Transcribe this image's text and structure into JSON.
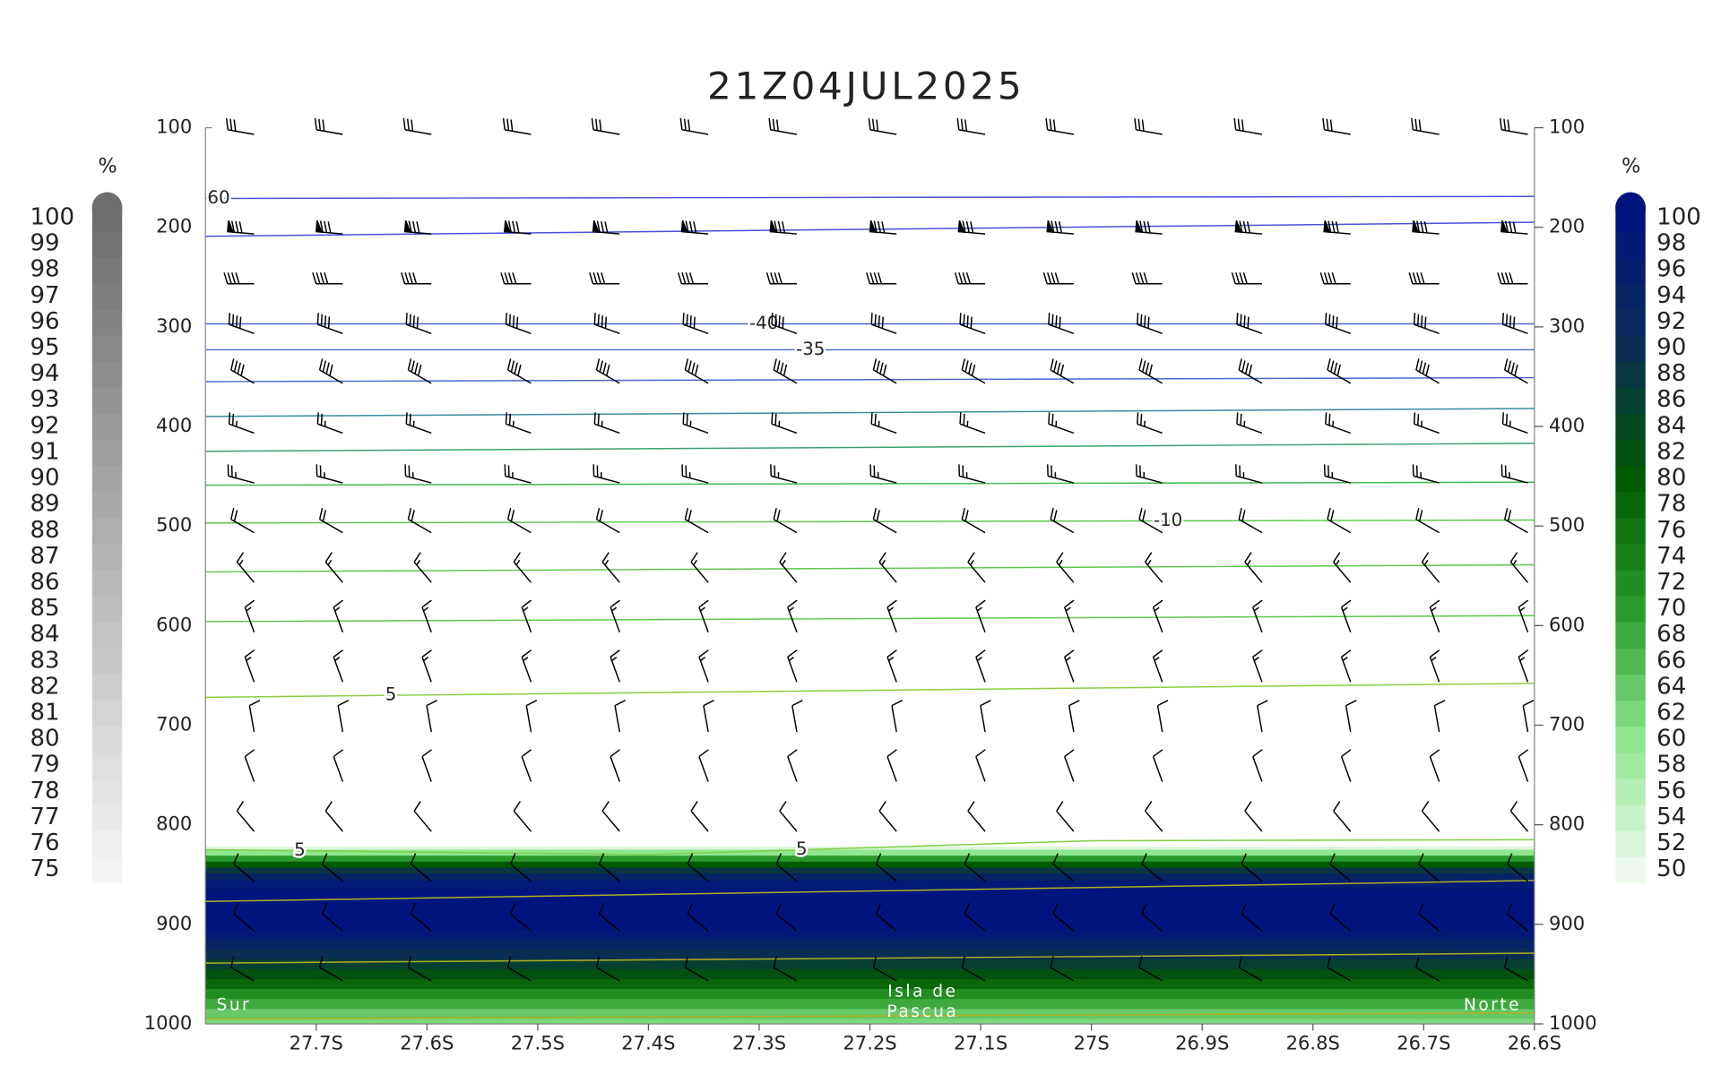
{
  "chart_data": {
    "type": "cross_section",
    "title": "21Z04JUL2025",
    "xlim": [
      -27.8,
      -26.6
    ],
    "xticks": [
      {
        "value": -27.7,
        "label": "27.7S"
      },
      {
        "value": -27.6,
        "label": "27.6S"
      },
      {
        "value": -27.5,
        "label": "27.5S"
      },
      {
        "value": -27.4,
        "label": "27.4S"
      },
      {
        "value": -27.3,
        "label": "27.3S"
      },
      {
        "value": -27.2,
        "label": "27.2S"
      },
      {
        "value": -27.1,
        "label": "27.1S"
      },
      {
        "value": -27,
        "label": "27S"
      },
      {
        "value": -26.9,
        "label": "26.9S"
      },
      {
        "value": -26.8,
        "label": "26.8S"
      },
      {
        "value": -26.7,
        "label": "26.7S"
      },
      {
        "value": -26.6,
        "label": "26.6S"
      }
    ],
    "ylim": [
      100,
      1000
    ],
    "y_reversed": true,
    "yticks": [
      100,
      200,
      300,
      400,
      500,
      600,
      700,
      800,
      900,
      1000
    ],
    "annotations": [
      [
        "Sur"
      ],
      [
        "Isla de",
        "Pascua"
      ],
      [
        "Norte"
      ]
    ],
    "humidity": {
      "p": [
        822,
        828,
        834,
        840,
        846,
        852,
        860,
        870,
        880,
        890,
        900,
        910,
        920,
        930,
        940,
        950,
        960,
        970,
        980,
        990,
        1000
      ],
      "values": [
        52,
        60,
        70,
        80,
        88,
        94,
        98,
        100,
        100,
        100,
        100,
        98,
        94,
        90,
        86,
        82,
        78,
        72,
        68,
        64,
        62
      ]
    },
    "contours": [
      {
        "p": [
          171,
          169
        ],
        "color": "#4b50d8",
        "labels": [
          "60"
        ]
      },
      {
        "p": [
          209,
          195
        ],
        "color": "#4b50d8"
      },
      {
        "p": [
          297,
          297
        ],
        "color": "#4a68d0",
        "labels": [
          "-40"
        ]
      },
      {
        "p": [
          323,
          323
        ],
        "color": "#4a68d0",
        "labels": [
          "-35"
        ]
      },
      {
        "p": [
          355,
          351
        ],
        "color": "#4a68d0"
      },
      {
        "p": [
          390,
          382
        ],
        "color": "#3a8aa0"
      },
      {
        "p": [
          425,
          417
        ],
        "color": "#3aa070"
      },
      {
        "p": [
          459,
          456
        ],
        "color": "#40b850"
      },
      {
        "p": [
          497,
          494
        ],
        "color": "#5cc84a",
        "labels": [
          "-10"
        ]
      },
      {
        "p": [
          546,
          539
        ],
        "color": "#5cc84a"
      },
      {
        "p": [
          596,
          590
        ],
        "color": "#5cc84a"
      },
      {
        "p": [
          672,
          658
        ],
        "color": "#8ccc40",
        "labels": [
          "5"
        ]
      },
      {
        "p": [
          825,
          830,
          816,
          815
        ],
        "color": "#7ed040",
        "labels": [
          "5",
          "5"
        ]
      },
      {
        "p": [
          877,
          856
        ],
        "color": "#b0b020"
      },
      {
        "p": [
          939,
          929
        ],
        "color": "#b0b020"
      },
      {
        "p": [
          995,
          989
        ],
        "color": "#b0b020"
      }
    ],
    "wind": {
      "lats": [
        -27.75,
        -27.67,
        -27.59,
        -27.5,
        -27.42,
        -27.34,
        -27.26,
        -27.17,
        -27.09,
        -27.01,
        -26.93,
        -26.84,
        -26.76,
        -26.68,
        -26.6
      ],
      "levels": [
        100,
        200,
        250,
        300,
        350,
        400,
        450,
        500,
        550,
        600,
        650,
        700,
        750,
        800,
        850,
        900,
        950
      ],
      "direction": [
        280,
        275,
        270,
        290,
        300,
        290,
        285,
        300,
        320,
        340,
        340,
        350,
        340,
        320,
        310,
        310,
        300
      ],
      "speed": [
        30,
        80,
        40,
        40,
        40,
        25,
        25,
        20,
        15,
        15,
        15,
        10,
        10,
        10,
        10,
        10,
        10
      ]
    },
    "colorbars": [
      {
        "unit": "%",
        "levels": [
          75,
          76,
          77,
          78,
          79,
          80,
          81,
          82,
          83,
          84,
          85,
          86,
          87,
          88,
          89,
          90,
          91,
          92,
          93,
          94,
          95,
          96,
          97,
          98,
          99,
          100
        ],
        "colors": [
          "#f4f4f4",
          "#6e6e6e"
        ]
      },
      {
        "unit": "%",
        "levels": [
          50,
          52,
          54,
          56,
          58,
          60,
          62,
          64,
          66,
          68,
          70,
          72,
          74,
          76,
          78,
          80,
          82,
          84,
          86,
          88,
          90,
          92,
          94,
          96,
          98,
          100
        ],
        "colors": [
          "#eefaee",
          "#8ee68e",
          "#2a9a2a",
          "#005a00",
          "#0a2e52",
          "#00147e"
        ]
      }
    ]
  }
}
